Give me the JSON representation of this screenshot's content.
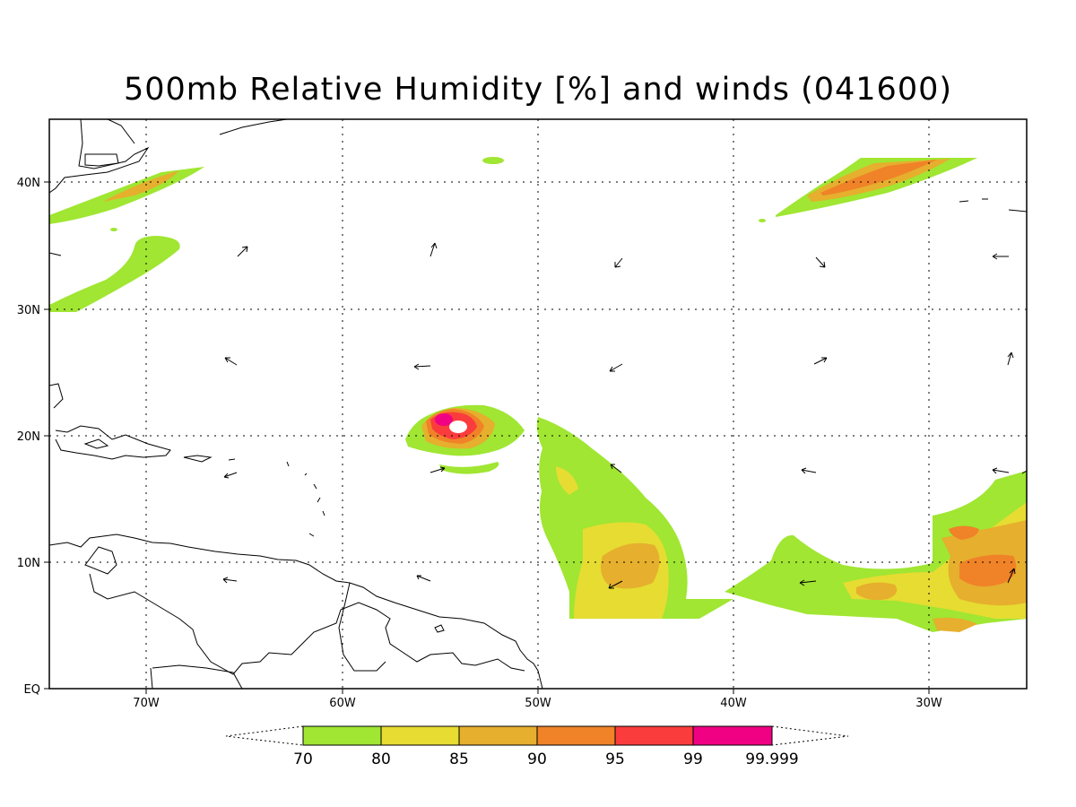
{
  "title": "500mb Relative Humidity [%] and winds (041600)",
  "lat_labels": [
    "40N",
    "30N",
    "20N",
    "10N",
    "EQ"
  ],
  "lon_labels": [
    "70W",
    "60W",
    "50W",
    "40W",
    "30W"
  ],
  "colorbar": {
    "labels": [
      "70",
      "80",
      "85",
      "90",
      "95",
      "99",
      "99.999"
    ],
    "colors": [
      "#a0e632",
      "#e6dc32",
      "#e6af2d",
      "#f08228",
      "#fa3c3c",
      "#f00082"
    ]
  }
}
